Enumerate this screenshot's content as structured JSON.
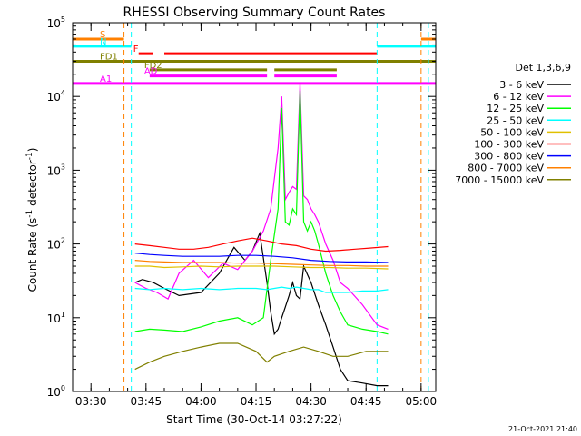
{
  "chart_data": {
    "type": "line",
    "title": "RHESSI Observing Summary Count Rates",
    "xlabel": "Start Time (30-Oct-14 03:27:22)",
    "ylabel": "Count Rate (s",
    "ylabel_sup": "-1",
    "ylabel_tail": " detector",
    "ylabel_end": ")",
    "footer": "21-Oct-2021 21:40",
    "y_scale": "log",
    "ylim": [
      1,
      100000
    ],
    "xlim": [
      "03:25",
      "05:04"
    ],
    "x_ticks": [
      {
        "t": "03:30",
        "label": "03:30"
      },
      {
        "t": "03:45",
        "label": "03:45"
      },
      {
        "t": "04:00",
        "label": "04:00"
      },
      {
        "t": "04:15",
        "label": "04:15"
      },
      {
        "t": "04:30",
        "label": "04:30"
      },
      {
        "t": "04:45",
        "label": "04:45"
      },
      {
        "t": "05:00",
        "label": "05:00"
      }
    ],
    "y_ticks": [
      {
        "v": 1,
        "base": "10",
        "exp": "0"
      },
      {
        "v": 10,
        "base": "10",
        "exp": "1"
      },
      {
        "v": 100,
        "base": "10",
        "exp": "2"
      },
      {
        "v": 1000,
        "base": "10",
        "exp": "3"
      },
      {
        "v": 10000,
        "base": "10",
        "exp": "4"
      },
      {
        "v": 100000,
        "base": "10",
        "exp": "5"
      }
    ],
    "legend_title": "Det 1,3,6,9",
    "legend_position": "right",
    "series": [
      {
        "name": "3 - 6 keV",
        "color": "#000000",
        "x": [
          "03:42",
          "03:44",
          "03:47",
          "03:50",
          "03:54",
          "04:00",
          "04:05",
          "04:09",
          "04:12",
          "04:14",
          "04:16",
          "04:18",
          "04:19",
          "04:20",
          "04:21",
          "04:22",
          "04:23",
          "04:24",
          "04:25",
          "04:26",
          "04:27",
          "04:28",
          "04:30",
          "04:32",
          "04:34",
          "04:36",
          "04:38",
          "04:40",
          "04:44",
          "04:48",
          "04:51"
        ],
        "y": [
          30,
          33,
          30,
          25,
          20,
          22,
          40,
          90,
          60,
          80,
          140,
          30,
          12,
          6,
          7,
          10,
          14,
          20,
          30,
          20,
          18,
          50,
          30,
          15,
          8,
          4,
          2,
          1.4,
          1.3,
          1.2,
          1.2
        ]
      },
      {
        "name": "6 - 12 keV",
        "color": "#ff00ff",
        "x": [
          "03:42",
          "03:45",
          "03:48",
          "03:51",
          "03:54",
          "03:58",
          "04:02",
          "04:06",
          "04:10",
          "04:14",
          "04:17",
          "04:19",
          "04:21",
          "04:22",
          "04:23",
          "04:24",
          "04:25",
          "04:26",
          "04:27",
          "04:28",
          "04:29",
          "04:30",
          "04:31",
          "04:32",
          "04:34",
          "04:36",
          "04:38",
          "04:40",
          "04:44",
          "04:48",
          "04:51"
        ],
        "y": [
          30,
          25,
          22,
          18,
          40,
          60,
          35,
          55,
          45,
          80,
          150,
          300,
          2000,
          10000,
          400,
          500,
          600,
          550,
          15000,
          450,
          400,
          300,
          250,
          200,
          100,
          60,
          30,
          25,
          15,
          8,
          7
        ]
      },
      {
        "name": "12 - 25 keV",
        "color": "#00ff00",
        "x": [
          "03:42",
          "03:46",
          "03:50",
          "03:55",
          "04:00",
          "04:05",
          "04:10",
          "04:14",
          "04:17",
          "04:19",
          "04:21",
          "04:22",
          "04:23",
          "04:24",
          "04:25",
          "04:26",
          "04:27",
          "04:28",
          "04:29",
          "04:30",
          "04:31",
          "04:32",
          "04:34",
          "04:36",
          "04:38",
          "04:40",
          "04:44",
          "04:48",
          "04:51"
        ],
        "y": [
          6.5,
          7,
          6.8,
          6.5,
          7.5,
          9,
          10,
          8,
          10,
          60,
          300,
          7000,
          200,
          180,
          300,
          250,
          12000,
          200,
          150,
          200,
          150,
          100,
          40,
          20,
          12,
          8,
          7,
          6.5,
          6
        ]
      },
      {
        "name": "25 - 50 keV",
        "color": "#00ffff",
        "x": [
          "03:42",
          "03:46",
          "03:50",
          "03:55",
          "04:00",
          "04:05",
          "04:10",
          "04:15",
          "04:18",
          "04:20",
          "04:22",
          "04:24",
          "04:26",
          "04:28",
          "04:30",
          "04:32",
          "04:34",
          "04:36",
          "04:40",
          "04:44",
          "04:48",
          "04:51"
        ],
        "y": [
          25,
          24,
          25,
          24,
          25,
          24,
          25,
          25,
          24,
          25,
          26,
          25,
          26,
          25,
          24,
          24,
          22,
          22,
          22,
          23,
          23,
          24
        ]
      },
      {
        "name": "50 - 100 keV",
        "color": "#e0c000",
        "x": [
          "03:42",
          "03:46",
          "03:50",
          "03:55",
          "04:00",
          "04:05",
          "04:10",
          "04:15",
          "04:20",
          "04:25",
          "04:30",
          "04:35",
          "04:40",
          "04:45",
          "04:51"
        ],
        "y": [
          50,
          50,
          48,
          49,
          50,
          49,
          50,
          50,
          50,
          49,
          48,
          48,
          47,
          47,
          46
        ]
      },
      {
        "name": "100 - 300 keV",
        "color": "#ff0000",
        "x": [
          "03:42",
          "03:46",
          "03:50",
          "03:54",
          "03:58",
          "04:02",
          "04:06",
          "04:10",
          "04:14",
          "04:18",
          "04:22",
          "04:26",
          "04:30",
          "04:34",
          "04:38",
          "04:42",
          "04:46",
          "04:51"
        ],
        "y": [
          100,
          95,
          90,
          85,
          85,
          90,
          100,
          110,
          120,
          110,
          100,
          95,
          85,
          80,
          82,
          85,
          88,
          92
        ]
      },
      {
        "name": "300 - 800 keV",
        "color": "#0000ff",
        "x": [
          "03:42",
          "03:46",
          "03:50",
          "03:55",
          "04:00",
          "04:05",
          "04:10",
          "04:15",
          "04:20",
          "04:25",
          "04:30",
          "04:35",
          "04:40",
          "04:45",
          "04:51"
        ],
        "y": [
          75,
          72,
          70,
          68,
          68,
          68,
          70,
          70,
          68,
          65,
          60,
          58,
          57,
          57,
          56
        ]
      },
      {
        "name": "800 - 7000 keV",
        "color": "#ff8000",
        "x": [
          "03:42",
          "03:46",
          "03:50",
          "03:55",
          "04:00",
          "04:05",
          "04:10",
          "04:15",
          "04:20",
          "04:25",
          "04:30",
          "04:35",
          "04:40",
          "04:45",
          "04:51"
        ],
        "y": [
          60,
          58,
          57,
          56,
          56,
          56,
          55,
          55,
          54,
          53,
          52,
          51,
          51,
          50,
          50
        ]
      },
      {
        "name": "7000 - 15000 keV",
        "color": "#808000",
        "x": [
          "03:42",
          "03:46",
          "03:50",
          "03:55",
          "04:00",
          "04:05",
          "04:10",
          "04:15",
          "04:18",
          "04:20",
          "04:24",
          "04:28",
          "04:32",
          "04:36",
          "04:40",
          "04:45",
          "04:51"
        ],
        "y": [
          2,
          2.5,
          3,
          3.5,
          4,
          4.5,
          4.5,
          3.5,
          2.5,
          3,
          3.5,
          4,
          3.5,
          3,
          3,
          3.5,
          3.5
        ]
      }
    ],
    "state_bars": [
      {
        "label": "S",
        "color": "#ff8000",
        "value": 60000,
        "segments": [
          [
            "03:25",
            "03:39"
          ],
          [
            "05:00",
            "05:04"
          ]
        ]
      },
      {
        "label": "N",
        "color": "#00ffff",
        "value": 48000,
        "segments": [
          [
            "03:25",
            "03:41"
          ],
          [
            "04:48",
            "05:04"
          ]
        ]
      },
      {
        "label": "F",
        "color": "#ff0000",
        "value": 38000,
        "segments": [
          [
            "03:43",
            "03:47"
          ],
          [
            "03:50",
            "04:48"
          ]
        ]
      },
      {
        "label": "FD1",
        "color": "#808000",
        "value": 30000,
        "segments": [
          [
            "03:25",
            "05:04"
          ]
        ]
      },
      {
        "label": "FD2",
        "color": "#808000",
        "value": 23000,
        "segments": [
          [
            "03:46",
            "04:18"
          ],
          [
            "04:20",
            "04:37"
          ]
        ]
      },
      {
        "label": "AD",
        "color": "#ff00ff",
        "value": 19000,
        "segments": [
          [
            "03:46",
            "04:18"
          ],
          [
            "04:20",
            "04:37"
          ]
        ]
      },
      {
        "label": "A1",
        "color": "#ff00ff",
        "value": 15000,
        "segments": [
          [
            "03:25",
            "05:04"
          ]
        ]
      }
    ],
    "vertical_markers": [
      {
        "t": "03:39",
        "color": "#ff8000"
      },
      {
        "t": "03:41",
        "color": "#00ffff"
      },
      {
        "t": "04:48",
        "color": "#00ffff"
      },
      {
        "t": "05:00",
        "color": "#ff8000"
      },
      {
        "t": "05:02",
        "color": "#00ffff"
      }
    ]
  }
}
